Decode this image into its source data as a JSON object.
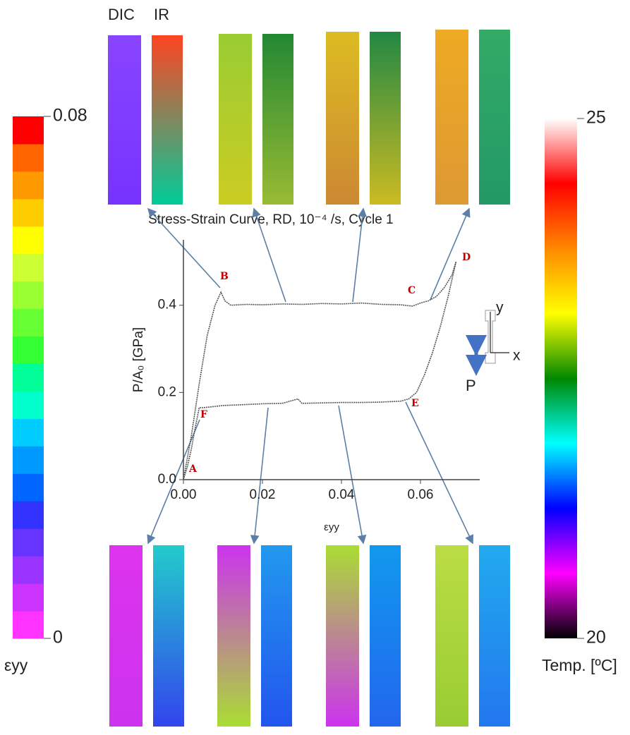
{
  "chart_data": {
    "type": "line",
    "title": "Stress-Strain Curve, RD, 10⁻⁴ /s, Cycle 1",
    "x_label": "εyy",
    "y_label": "P/A₀ [GPa]",
    "x": [
      0,
      0.002,
      0.004,
      0.006,
      0.008,
      0.0095,
      0.0105,
      0.012,
      0.016,
      0.02,
      0.025,
      0.03,
      0.035,
      0.04,
      0.045,
      0.05,
      0.055,
      0.058,
      0.06,
      0.062,
      0.064,
      0.066,
      0.068,
      0.069,
      0.067,
      0.065,
      0.063,
      0.061,
      0.059,
      0.057,
      0.055,
      0.05,
      0.045,
      0.04,
      0.035,
      0.03,
      0.029,
      0.025,
      0.02,
      0.015,
      0.01,
      0.005,
      0.004,
      0.003,
      0.002,
      0.001,
      0
    ],
    "values": [
      0,
      0.1,
      0.22,
      0.33,
      0.4,
      0.43,
      0.41,
      0.4,
      0.402,
      0.401,
      0.403,
      0.402,
      0.404,
      0.403,
      0.405,
      0.402,
      0.401,
      0.398,
      0.405,
      0.41,
      0.42,
      0.44,
      0.47,
      0.5,
      0.42,
      0.35,
      0.29,
      0.24,
      0.2,
      0.185,
      0.18,
      0.178,
      0.177,
      0.177,
      0.176,
      0.175,
      0.185,
      0.175,
      0.174,
      0.172,
      0.17,
      0.165,
      0.165,
      0.12,
      0.07,
      0.03,
      0
    ],
    "xlim": [
      0,
      0.075
    ],
    "ylim": [
      0,
      0.55
    ],
    "xticks": [
      {
        "value": 0,
        "label": "0.00"
      },
      {
        "value": 0.02,
        "label": "0.02"
      },
      {
        "value": 0.04,
        "label": "0.04"
      },
      {
        "value": 0.06,
        "label": "0.06"
      }
    ],
    "yticks": [
      {
        "value": 0,
        "label": "0.0"
      },
      {
        "value": 0.2,
        "label": "0.2"
      },
      {
        "value": 0.4,
        "label": "0.4"
      }
    ],
    "color": "#555555",
    "annotations": [
      "A",
      "B",
      "C",
      "D",
      "E",
      "F"
    ]
  },
  "panel_labels": {
    "dic": "DIC",
    "ir": "IR"
  },
  "inset": {
    "y": "y",
    "x": "x",
    "load": "P"
  },
  "strain_colorbar": {
    "label": "εyy",
    "ticks": [
      0,
      0.08
    ],
    "colors": [
      "#ff33ff",
      "#cc33ff",
      "#9933ff",
      "#6633ff",
      "#3333ff",
      "#0066ff",
      "#0099ff",
      "#00ccff",
      "#00ffcc",
      "#00ff99",
      "#33ff33",
      "#66ff33",
      "#99ff33",
      "#ccff33",
      "#ffff00",
      "#ffcc00",
      "#ff9900",
      "#ff6600",
      "#ff0000"
    ]
  },
  "temperature_colorbar": {
    "label": "Temp. [ºC]",
    "ticks": [
      20,
      25
    ],
    "colors": [
      "#000000",
      "#ff00ff",
      "#0000ff",
      "#00ffff",
      "#008800",
      "#ffff00",
      "#ff8800",
      "#ff0000",
      "#ffffff"
    ]
  }
}
